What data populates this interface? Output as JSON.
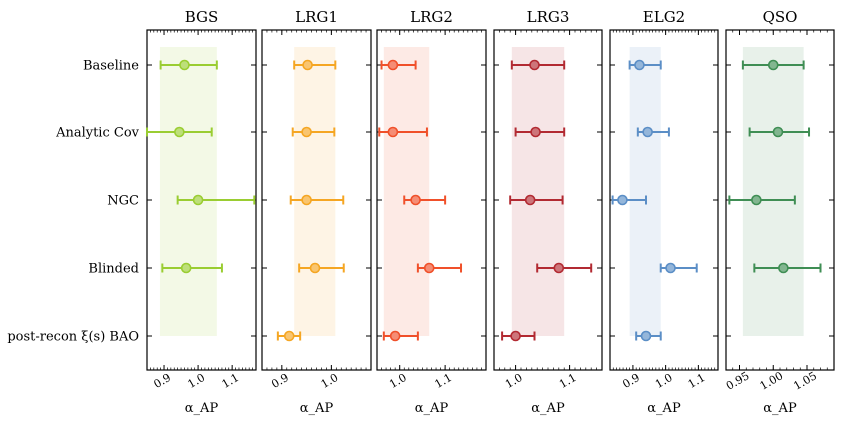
{
  "chart_data": {
    "type": "errorbar",
    "title": "",
    "xlabel": "α_AP",
    "row_labels": [
      "Baseline",
      "Analytic Cov",
      "NGC",
      "Blinded",
      "post-recon ξ(s) BAO"
    ],
    "panels": [
      {
        "name": "BGS",
        "color": "#9acd32",
        "xlim": [
          0.85,
          1.17
        ],
        "ticks": [
          0.9,
          1.0,
          1.1
        ],
        "tick_labels": [
          "0.9",
          "1.0",
          "1.1"
        ],
        "band": [
          0.888,
          1.055
        ],
        "points": [
          {
            "label": "Baseline",
            "x": 0.96,
            "lo": 0.89,
            "hi": 1.055
          },
          {
            "label": "Analytic Cov",
            "x": 0.945,
            "lo": 0.85,
            "hi": 1.04
          },
          {
            "label": "NGC",
            "x": 1.0,
            "lo": 0.94,
            "hi": 1.165
          },
          {
            "label": "Blinded",
            "x": 0.965,
            "lo": 0.895,
            "hi": 1.07
          }
        ]
      },
      {
        "name": "LRG1",
        "color": "#f5a623",
        "xlim": [
          0.86,
          1.08
        ],
        "ticks": [
          0.9,
          1.0
        ],
        "tick_labels": [
          "0.9",
          "1.0"
        ],
        "band": [
          0.925,
          1.008
        ],
        "points": [
          {
            "label": "Baseline",
            "x": 0.952,
            "lo": 0.925,
            "hi": 1.008
          },
          {
            "label": "Analytic Cov",
            "x": 0.95,
            "lo": 0.922,
            "hi": 1.006
          },
          {
            "label": "NGC",
            "x": 0.95,
            "lo": 0.918,
            "hi": 1.024
          },
          {
            "label": "Blinded",
            "x": 0.967,
            "lo": 0.935,
            "hi": 1.025
          },
          {
            "label": "post-recon ξ(s) BAO",
            "x": 0.915,
            "lo": 0.892,
            "hi": 0.937
          }
        ]
      },
      {
        "name": "LRG2",
        "color": "#f0502a",
        "xlim": [
          0.95,
          1.19
        ],
        "ticks": [
          1.0,
          1.1
        ],
        "tick_labels": [
          "1.0",
          "1.1"
        ],
        "band": [
          0.965,
          1.065
        ],
        "points": [
          {
            "label": "Baseline",
            "x": 0.985,
            "lo": 0.96,
            "hi": 1.035
          },
          {
            "label": "Analytic Cov",
            "x": 0.985,
            "lo": 0.955,
            "hi": 1.06
          },
          {
            "label": "NGC",
            "x": 1.035,
            "lo": 1.01,
            "hi": 1.1
          },
          {
            "label": "Blinded",
            "x": 1.065,
            "lo": 1.04,
            "hi": 1.135
          },
          {
            "label": "post-recon ξ(s) BAO",
            "x": 0.99,
            "lo": 0.965,
            "hi": 1.04
          }
        ]
      },
      {
        "name": "LRG3",
        "color": "#b22a32",
        "xlim": [
          0.96,
          1.16
        ],
        "ticks": [
          1.0,
          1.1
        ],
        "tick_labels": [
          "1.0",
          "1.1"
        ],
        "band": [
          0.993,
          1.09
        ],
        "points": [
          {
            "label": "Baseline",
            "x": 1.035,
            "lo": 0.993,
            "hi": 1.09
          },
          {
            "label": "Analytic Cov",
            "x": 1.037,
            "lo": 1.0,
            "hi": 1.09
          },
          {
            "label": "NGC",
            "x": 1.027,
            "lo": 0.99,
            "hi": 1.087
          },
          {
            "label": "Blinded",
            "x": 1.08,
            "lo": 1.04,
            "hi": 1.14
          },
          {
            "label": "post-recon ξ(s) BAO",
            "x": 1.0,
            "lo": 0.975,
            "hi": 1.035
          }
        ]
      },
      {
        "name": "ELG2",
        "color": "#5b8ec6",
        "xlim": [
          0.83,
          1.16
        ],
        "ticks": [
          0.9,
          1.0,
          1.1
        ],
        "tick_labels": [
          "0.9",
          "1.0",
          "1.1"
        ],
        "band": [
          0.89,
          0.985
        ],
        "points": [
          {
            "label": "Baseline",
            "x": 0.92,
            "lo": 0.89,
            "hi": 0.985
          },
          {
            "label": "Analytic Cov",
            "x": 0.945,
            "lo": 0.915,
            "hi": 1.01
          },
          {
            "label": "NGC",
            "x": 0.868,
            "lo": 0.838,
            "hi": 0.94
          },
          {
            "label": "Blinded",
            "x": 1.015,
            "lo": 0.985,
            "hi": 1.095
          },
          {
            "label": "post-recon ξ(s) BAO",
            "x": 0.94,
            "lo": 0.91,
            "hi": 0.985
          }
        ]
      },
      {
        "name": "QSO",
        "color": "#3f8e54",
        "xlim": [
          0.93,
          1.09
        ],
        "ticks": [
          0.95,
          1.0,
          1.05
        ],
        "tick_labels": [
          "0.95",
          "1.00",
          "1.05"
        ],
        "band": [
          0.955,
          1.045
        ],
        "points": [
          {
            "label": "Baseline",
            "x": 1.0,
            "lo": 0.955,
            "hi": 1.045
          },
          {
            "label": "Analytic Cov",
            "x": 1.007,
            "lo": 0.965,
            "hi": 1.053
          },
          {
            "label": "NGC",
            "x": 0.975,
            "lo": 0.935,
            "hi": 1.032
          },
          {
            "label": "Blinded",
            "x": 1.015,
            "lo": 0.972,
            "hi": 1.07
          }
        ]
      }
    ]
  }
}
